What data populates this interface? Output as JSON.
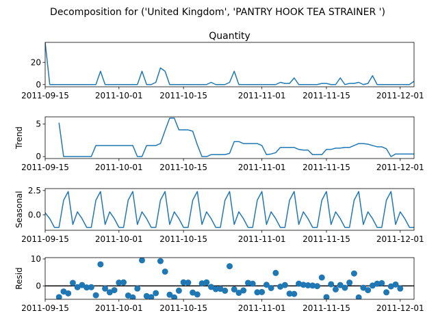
{
  "suptitle": "Decomposition for ('United Kingdom', 'PANTRY HOOK TEA STRAINER ')",
  "line_color": "#1f77b4",
  "chart_data": [
    {
      "type": "line",
      "title": "Quantity",
      "ylabel": "",
      "xlim": [
        "2011-09-15",
        "2011-12-04"
      ],
      "ylim": [
        -2,
        38
      ],
      "yticks": [
        0,
        20
      ],
      "xticks": [
        "2011-09-15",
        "2011-10-01",
        "2011-10-15",
        "2011-11-01",
        "2011-11-15",
        "2011-12-01"
      ],
      "start_date": "2011-09-15",
      "values": [
        38,
        0,
        0,
        0,
        0,
        0,
        0,
        0,
        0,
        0,
        0,
        0,
        12,
        0,
        0,
        0,
        0,
        0,
        0,
        0,
        0,
        12,
        0,
        0,
        2,
        15,
        12,
        0,
        0,
        0,
        0,
        0,
        0,
        0,
        0,
        0,
        2,
        0,
        0,
        0,
        2,
        12,
        0,
        0,
        0,
        0,
        0,
        0,
        0,
        0,
        0,
        2,
        1,
        1,
        6,
        0,
        0,
        0,
        0,
        0,
        1,
        1,
        0,
        0,
        6,
        0,
        1,
        1,
        2,
        0,
        1,
        8,
        0,
        0,
        0,
        0,
        0,
        0,
        0,
        0,
        3,
        0,
        0,
        0,
        0,
        1
      ]
    },
    {
      "type": "line",
      "title": "",
      "ylabel": "Trend",
      "xlim": [
        "2011-09-15",
        "2011-12-04"
      ],
      "ylim": [
        -0.3,
        6.1
      ],
      "yticks": [
        0,
        5
      ],
      "xticks": [
        "2011-09-15",
        "2011-10-01",
        "2011-10-15",
        "2011-11-01",
        "2011-11-15",
        "2011-12-01"
      ],
      "start_date": "2011-09-18",
      "values": [
        5.2,
        0,
        0,
        0,
        0,
        0,
        0,
        0,
        1.7,
        1.7,
        1.7,
        1.7,
        1.7,
        1.7,
        1.7,
        1.7,
        1.7,
        0,
        0,
        1.7,
        1.7,
        1.7,
        2.0,
        4.0,
        5.9,
        5.9,
        4.1,
        4.1,
        4.1,
        3.9,
        1.8,
        0,
        0,
        0.3,
        0.3,
        0.3,
        0.3,
        0.5,
        2.3,
        2.3,
        2.0,
        2.0,
        2.0,
        2.0,
        1.7,
        0.3,
        0.4,
        0.6,
        1.4,
        1.4,
        1.4,
        1.4,
        1.1,
        1.0,
        1.0,
        0.3,
        0.3,
        0.3,
        1.1,
        1.1,
        1.3,
        1.3,
        1.4,
        1.4,
        1.7,
        2.0,
        2.0,
        1.9,
        1.7,
        1.5,
        1.5,
        1.2,
        0,
        0.4,
        0.4,
        0.4,
        0.4,
        0.4,
        0.6
      ]
    },
    {
      "type": "line",
      "title": "",
      "ylabel": "Seasonal",
      "xlim": [
        "2011-09-15",
        "2011-12-04"
      ],
      "ylim": [
        -1.6,
        2.7
      ],
      "yticks": [
        0.0,
        2.5
      ],
      "xticks": [
        "2011-09-15",
        "2011-10-01",
        "2011-10-15",
        "2011-11-01",
        "2011-11-15",
        "2011-12-01"
      ],
      "start_date": "2011-09-15",
      "values": [
        0.2,
        -0.4,
        -1.3,
        -1.3,
        1.5,
        2.4,
        -1.0,
        0.3,
        -0.4,
        -1.3,
        -1.3,
        1.5,
        2.4,
        -1.0,
        0.3,
        -0.4,
        -1.3,
        -1.3,
        1.5,
        2.4,
        -1.0,
        0.3,
        -0.4,
        -1.3,
        -1.3,
        1.5,
        2.4,
        -1.0,
        0.3,
        -0.4,
        -1.3,
        -1.3,
        1.5,
        2.4,
        -1.0,
        0.3,
        -0.4,
        -1.3,
        -1.3,
        1.5,
        2.4,
        -1.0,
        0.3,
        -0.4,
        -1.3,
        -1.3,
        1.5,
        2.4,
        -1.0,
        0.3,
        -0.4,
        -1.3,
        -1.3,
        1.5,
        2.4,
        -1.0,
        0.3,
        -0.4,
        -1.3,
        -1.3,
        1.5,
        2.4,
        -1.0,
        0.3,
        -0.4,
        -1.3,
        -1.3,
        1.5,
        2.4,
        -1.0,
        0.3,
        -0.4,
        -1.3,
        -1.3,
        1.5,
        2.4,
        -1.0,
        0.3,
        -0.4,
        -1.3,
        -1.3
      ]
    },
    {
      "type": "scatter",
      "title": "",
      "ylabel": "Resid",
      "xlim": [
        "2011-09-15",
        "2011-12-04"
      ],
      "ylim": [
        -5,
        10.5
      ],
      "yticks": [
        0,
        10
      ],
      "xticks": [
        "2011-09-15",
        "2011-10-01",
        "2011-10-15",
        "2011-11-01",
        "2011-11-15",
        "2011-12-01"
      ],
      "zero_line": true,
      "start_date": "2011-09-18",
      "values": [
        -4.2,
        -2.1,
        -2.8,
        1.1,
        -0.5,
        0.3,
        -0.6,
        -0.5,
        -3.5,
        8.0,
        -1.0,
        -2.4,
        -1.6,
        1.2,
        1.3,
        -3.6,
        -4.3,
        -1.0,
        9.5,
        -3.8,
        -4.2,
        -2.7,
        9.2,
        5.3,
        -3.3,
        -4.3,
        -1.8,
        1.3,
        1.2,
        -2.5,
        -3.2,
        0.9,
        1.3,
        -0.4,
        -1.2,
        -1.1,
        -1.8,
        7.3,
        -1.3,
        -2.6,
        -1.7,
        1.1,
        0.8,
        -2.4,
        -2.3,
        0.4,
        -0.8,
        4.8,
        -0.3,
        0.3,
        -2.9,
        -3.0,
        0.8,
        0.4,
        0.2,
        0.1,
        -0.1,
        3.1,
        -4.2,
        0.6,
        -1.3,
        0.3,
        -0.7,
        1.2,
        4.6,
        -4.3,
        -0.7,
        -1.6,
        0.1,
        0.8,
        1.0,
        -2.4,
        -0.2,
        0.5,
        -1.0
      ]
    }
  ]
}
